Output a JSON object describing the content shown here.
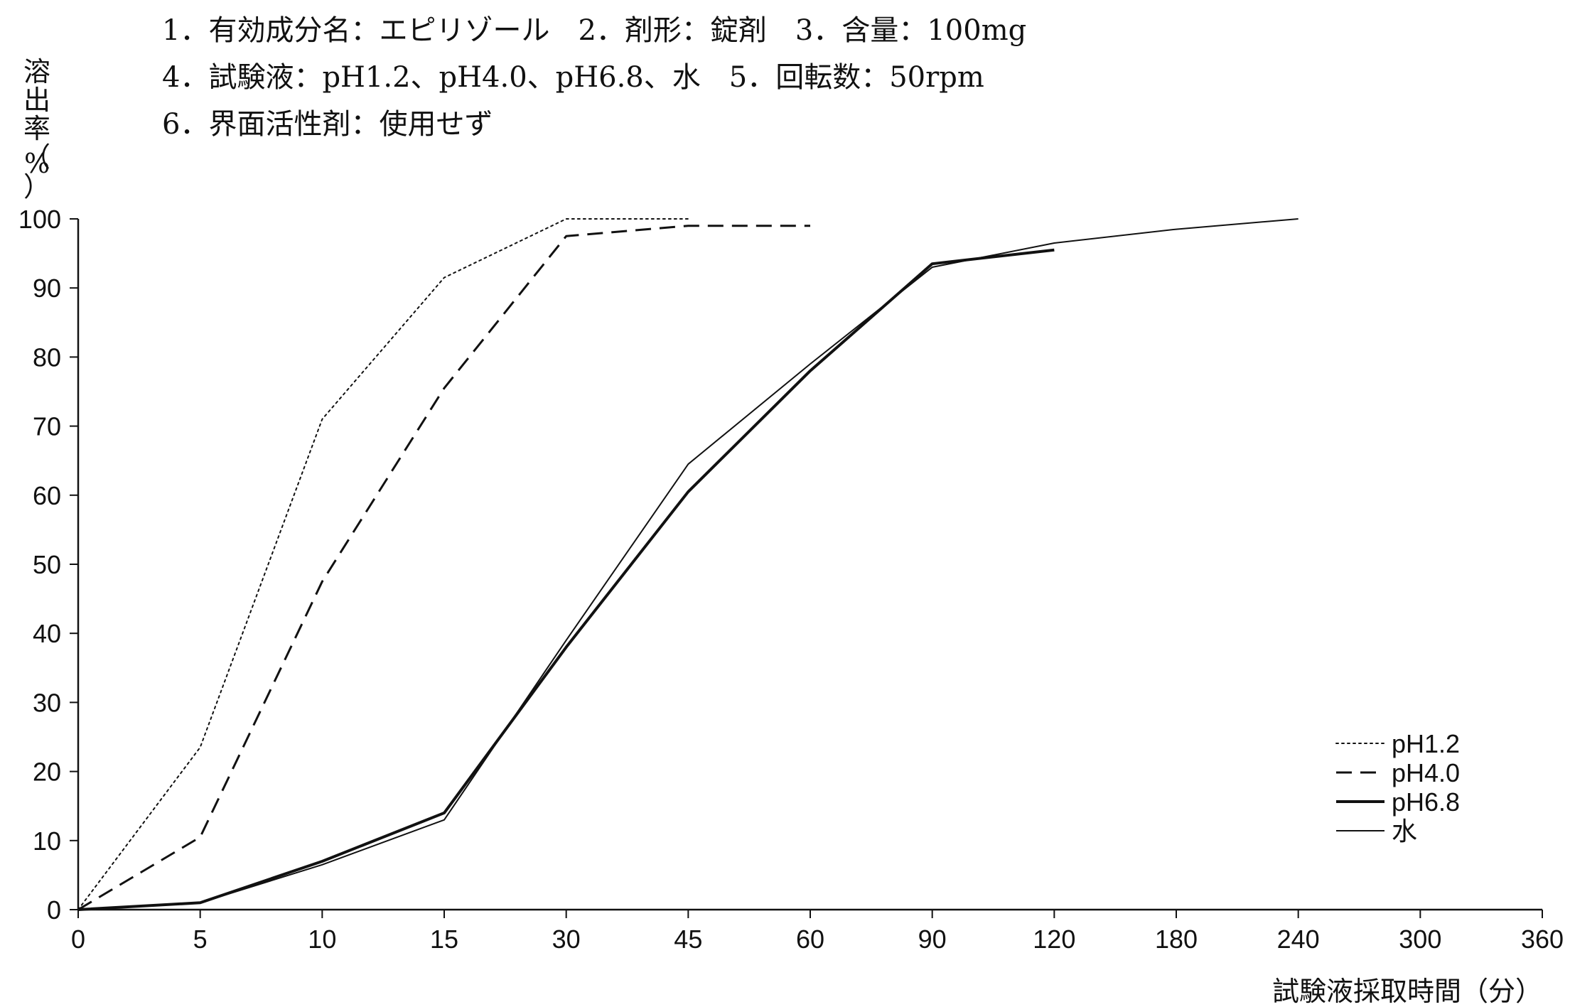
{
  "conditions": [
    "1．有効成分名：エピリゾール　2．剤形：錠剤　3．含量：100mg",
    "4．試験液：pH1.2、pH4.0、pH6.8、水　5．回転数：50rpm",
    "6．界面活性剤：使用せず"
  ],
  "chart_data": {
    "type": "line",
    "title": "",
    "xlabel": "試験液採取時間（分）",
    "ylabel": "溶出率（%）",
    "ylabel_chars": [
      "溶",
      "出",
      "率",
      "（",
      "%",
      "）"
    ],
    "x_axis_scale": "categorical (unevenly spaced time points drawn at equal intervals)",
    "categories": [
      "0",
      "5",
      "10",
      "15",
      "30",
      "45",
      "60",
      "90",
      "120",
      "180",
      "240",
      "300",
      "360"
    ],
    "ylim": [
      0,
      100
    ],
    "yticks": [
      0,
      10,
      20,
      30,
      40,
      50,
      60,
      70,
      80,
      90,
      100
    ],
    "grid": false,
    "legend_position": "right, lower half",
    "series": [
      {
        "name": "pH1.2",
        "style": "dotted",
        "stroke_width": 2,
        "points": [
          [
            0,
            0
          ],
          [
            5,
            23.5
          ],
          [
            10,
            71
          ],
          [
            15,
            91.5
          ],
          [
            30,
            100
          ],
          [
            45,
            100
          ]
        ]
      },
      {
        "name": "pH4.0",
        "style": "dashed",
        "stroke_width": 3,
        "points": [
          [
            0,
            0
          ],
          [
            5,
            10.5
          ],
          [
            10,
            47.5
          ],
          [
            15,
            75.5
          ],
          [
            30,
            97.5
          ],
          [
            45,
            99
          ],
          [
            60,
            99
          ]
        ]
      },
      {
        "name": "pH6.8",
        "style": "solid-thick",
        "stroke_width": 4,
        "points": [
          [
            0,
            0
          ],
          [
            5,
            1
          ],
          [
            10,
            7
          ],
          [
            15,
            14
          ],
          [
            30,
            38
          ],
          [
            45,
            60.5
          ],
          [
            60,
            78
          ],
          [
            90,
            93.5
          ],
          [
            120,
            95.5
          ]
        ]
      },
      {
        "name": "水",
        "style": "solid-thin",
        "stroke_width": 2,
        "points": [
          [
            0,
            0
          ],
          [
            5,
            1
          ],
          [
            10,
            6.5
          ],
          [
            15,
            13
          ],
          [
            30,
            39
          ],
          [
            45,
            64.5
          ],
          [
            60,
            79
          ],
          [
            90,
            93
          ],
          [
            120,
            96.5
          ],
          [
            180,
            98.5
          ],
          [
            240,
            100
          ]
        ]
      }
    ]
  }
}
